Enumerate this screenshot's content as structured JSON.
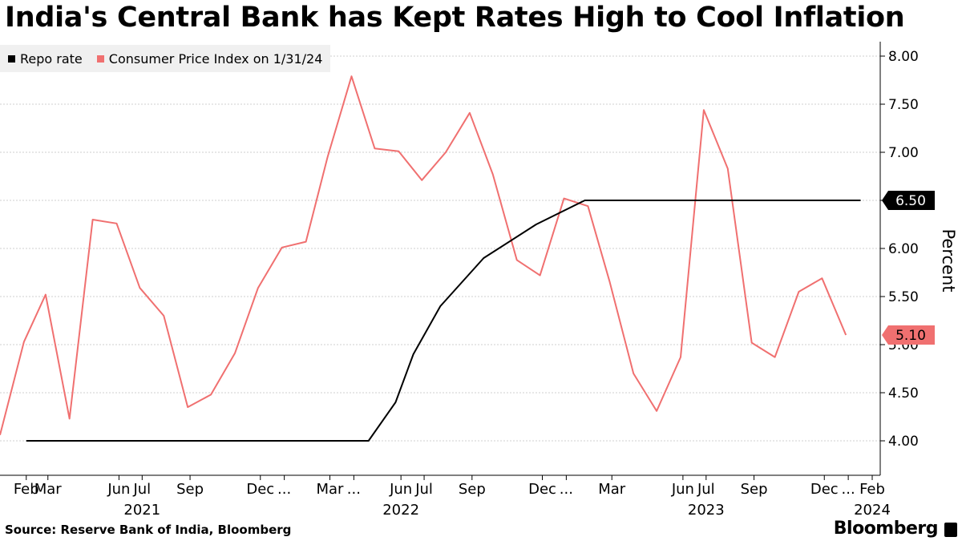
{
  "title": "India's Central Bank has Kept Rates High to Cool Inflation",
  "source": "Source: Reserve Bank of India, Bloomberg",
  "brand": "Bloomberg",
  "chart_data": {
    "type": "line",
    "title": "India's Central Bank has Kept Rates High to Cool Inflation",
    "ylabel": "Percent",
    "ylim": [
      3.5,
      8.1
    ],
    "yticks": [
      4.0,
      4.5,
      5.0,
      5.5,
      6.0,
      6.5,
      7.0,
      7.5,
      8.0
    ],
    "grid": true,
    "legend_position": "top-left",
    "x_tick_labels": [
      {
        "label": "Feb",
        "month": "2021-02"
      },
      {
        "label": "Mar",
        "month": "2021-03"
      },
      {
        "label": "Jun",
        "month": "2021-06"
      },
      {
        "label": "Jul",
        "month": "2021-07"
      },
      {
        "label": "Sep",
        "month": "2021-09"
      },
      {
        "label": "Dec",
        "month": "2021-12"
      },
      {
        "label": "...",
        "month": "2022-01"
      },
      {
        "label": "Mar",
        "month": "2022-03"
      },
      {
        "label": "...",
        "month": "2022-04"
      },
      {
        "label": "Jun",
        "month": "2022-06"
      },
      {
        "label": "Jul",
        "month": "2022-07"
      },
      {
        "label": "Sep",
        "month": "2022-09"
      },
      {
        "label": "Dec",
        "month": "2022-12"
      },
      {
        "label": "...",
        "month": "2023-01"
      },
      {
        "label": "Mar",
        "month": "2023-03"
      },
      {
        "label": "Jun",
        "month": "2023-06"
      },
      {
        "label": "Jul",
        "month": "2023-07"
      },
      {
        "label": "Sep",
        "month": "2023-09"
      },
      {
        "label": "Dec",
        "month": "2023-12"
      },
      {
        "label": "...",
        "month": "2024-01"
      },
      {
        "label": "Feb",
        "month": "2024-02"
      }
    ],
    "year_labels": [
      {
        "label": "2021",
        "month": "2021-07"
      },
      {
        "label": "2022",
        "month": "2022-06"
      },
      {
        "label": "2023",
        "month": "2023-07"
      },
      {
        "label": "2024",
        "month": "2024-02"
      }
    ],
    "series": [
      {
        "name": "Repo rate",
        "color": "#000000",
        "last_value_label": "6.50",
        "points": [
          [
            "2021-02-15",
            4.0
          ],
          [
            "2022-05-04",
            4.0
          ],
          [
            "2022-06-08",
            4.4
          ],
          [
            "2022-07-01",
            4.9
          ],
          [
            "2022-08-05",
            5.4
          ],
          [
            "2022-09-30",
            5.9
          ],
          [
            "2022-12-07",
            6.25
          ],
          [
            "2023-02-08",
            6.5
          ],
          [
            "2024-01-31",
            6.5
          ]
        ]
      },
      {
        "name": "Consumer Price Index on 1/31/24",
        "color": "#f07070",
        "last_value_label": "5.10",
        "points": [
          [
            "2021-01-12",
            4.06
          ],
          [
            "2021-02-12",
            5.03
          ],
          [
            "2021-03-12",
            5.52
          ],
          [
            "2021-04-12",
            4.23
          ],
          [
            "2021-05-12",
            6.3
          ],
          [
            "2021-06-12",
            6.26
          ],
          [
            "2021-07-12",
            5.59
          ],
          [
            "2021-08-12",
            5.3
          ],
          [
            "2021-09-12",
            4.35
          ],
          [
            "2021-10-12",
            4.48
          ],
          [
            "2021-11-12",
            4.91
          ],
          [
            "2021-12-12",
            5.59
          ],
          [
            "2022-01-12",
            6.01
          ],
          [
            "2022-02-12",
            6.07
          ],
          [
            "2022-03-12",
            6.95
          ],
          [
            "2022-04-12",
            7.79
          ],
          [
            "2022-05-12",
            7.04
          ],
          [
            "2022-06-12",
            7.01
          ],
          [
            "2022-07-12",
            6.71
          ],
          [
            "2022-08-12",
            7.0
          ],
          [
            "2022-09-12",
            7.41
          ],
          [
            "2022-10-12",
            6.77
          ],
          [
            "2022-11-12",
            5.88
          ],
          [
            "2022-12-12",
            5.72
          ],
          [
            "2023-01-12",
            6.52
          ],
          [
            "2023-02-12",
            6.44
          ],
          [
            "2023-03-12",
            5.66
          ],
          [
            "2023-04-12",
            4.7
          ],
          [
            "2023-05-12",
            4.31
          ],
          [
            "2023-06-12",
            4.87
          ],
          [
            "2023-07-12",
            7.44
          ],
          [
            "2023-08-12",
            6.83
          ],
          [
            "2023-09-12",
            5.02
          ],
          [
            "2023-10-12",
            4.87
          ],
          [
            "2023-11-12",
            5.55
          ],
          [
            "2023-12-12",
            5.69
          ],
          [
            "2024-01-12",
            5.1
          ]
        ]
      }
    ]
  }
}
